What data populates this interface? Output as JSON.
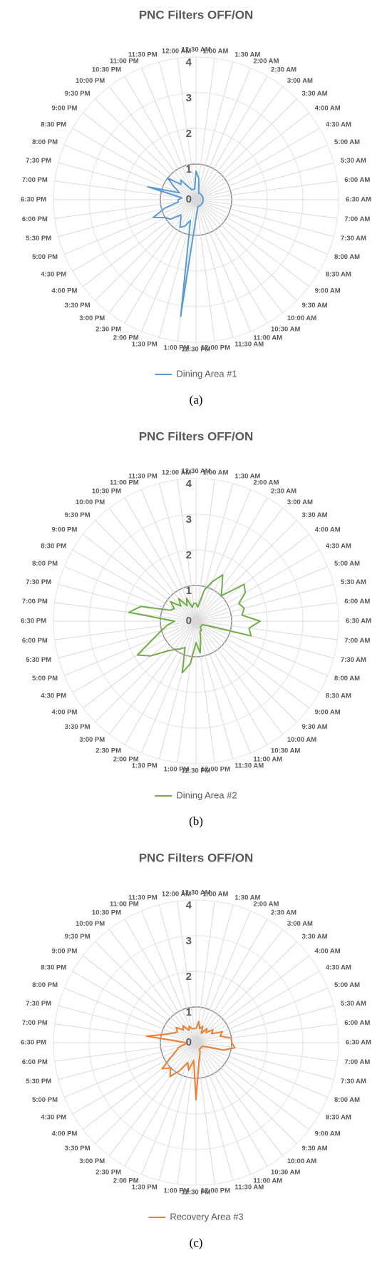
{
  "chart_data": [
    {
      "type": "radar",
      "title": "PNC Filters OFF/ON",
      "caption": "(a)",
      "categories": [
        "12:30 AM",
        "1:00 AM",
        "1:30 AM",
        "2:00 AM",
        "2:30 AM",
        "3:00 AM",
        "3:30 AM",
        "4:00 AM",
        "4:30 AM",
        "5:00 AM",
        "5:30 AM",
        "6:00 AM",
        "6:30 AM",
        "7:00 AM",
        "7:30 AM",
        "8:00 AM",
        "8:30 AM",
        "9:00 AM",
        "9:30 AM",
        "10:00 AM",
        "10:30 AM",
        "11:00 AM",
        "11:30 AM",
        "12:00 PM",
        "12:30 PM",
        "1:00 PM",
        "1:30 PM",
        "2:00 PM",
        "2:30 PM",
        "3:00 PM",
        "3:30 PM",
        "4:00 PM",
        "4:30 PM",
        "5:00 PM",
        "5:30 PM",
        "6:00 PM",
        "6:30 PM",
        "7:00 PM",
        "7:30 PM",
        "8:00 PM",
        "8:30 PM",
        "9:00 PM",
        "9:30 PM",
        "10:00 PM",
        "10:30 PM",
        "11:00 PM",
        "11:30 PM",
        "12:00 AM"
      ],
      "series": [
        {
          "name": "Dining Area #1",
          "color": "#5b9bd5",
          "values": [
            0.8,
            0.6,
            0.3,
            0.2,
            0.2,
            0.2,
            0.2,
            0.2,
            0.2,
            0.2,
            0.2,
            0.2,
            0.2,
            0.2,
            0.2,
            0.2,
            0.2,
            0.2,
            0.2,
            0.2,
            0.2,
            0.2,
            0.2,
            0.3,
            0.5,
            3.3,
            0.6,
            0.8,
            0.9,
            0.7,
            0.6,
            0.9,
            1.0,
            1.3,
            0.9,
            0.5,
            0.5,
            0.4,
            1.4,
            0.5,
            0.7,
            1.0,
            0.6,
            0.7,
            0.4,
            0.3,
            0.3,
            0.3
          ]
        }
      ],
      "ylim": [
        0,
        4
      ],
      "yticks": [
        0,
        1,
        2,
        3,
        4
      ],
      "reference_line": 1,
      "legend": "bottom"
    },
    {
      "type": "radar",
      "title": "PNC Filters OFF/ON",
      "caption": "(b)",
      "categories": [
        "12:30 AM",
        "1:00 AM",
        "1:30 AM",
        "2:00 AM",
        "2:30 AM",
        "3:00 AM",
        "3:30 AM",
        "4:00 AM",
        "4:30 AM",
        "5:00 AM",
        "5:30 AM",
        "6:00 AM",
        "6:30 AM",
        "7:00 AM",
        "7:30 AM",
        "8:00 AM",
        "8:30 AM",
        "9:00 AM",
        "9:30 AM",
        "10:00 AM",
        "10:30 AM",
        "11:00 AM",
        "11:30 AM",
        "12:00 PM",
        "12:30 PM",
        "1:00 PM",
        "1:30 PM",
        "2:00 PM",
        "2:30 PM",
        "3:00 PM",
        "3:30 PM",
        "4:00 PM",
        "4:30 PM",
        "5:00 PM",
        "5:30 PM",
        "6:00 PM",
        "6:30 PM",
        "7:00 PM",
        "7:30 PM",
        "8:00 PM",
        "8:30 PM",
        "9:00 PM",
        "9:30 PM",
        "10:00 PM",
        "10:30 PM",
        "11:00 PM",
        "11:30 PM",
        "12:00 AM"
      ],
      "series": [
        {
          "name": "Dining Area #2",
          "color": "#70ad47",
          "values": [
            0.5,
            0.4,
            0.9,
            1.2,
            1.5,
            1.2,
            1.0,
            1.7,
            1.6,
            1.3,
            1.4,
            1.3,
            1.8,
            1.5,
            1.6,
            0.3,
            0.2,
            0.2,
            0.2,
            0.2,
            0.3,
            0.3,
            0.5,
            0.9,
            0.6,
            1.2,
            1.5,
            0.8,
            0.9,
            1.0,
            1.2,
            1.6,
            1.9,
            1.3,
            1.0,
            0.8,
            0.6,
            1.9,
            1.6,
            0.8,
            0.7,
            0.9,
            0.6,
            0.8,
            0.5,
            0.7,
            0.4,
            0.5
          ]
        }
      ],
      "ylim": [
        0,
        4
      ],
      "yticks": [
        0,
        1,
        2,
        3,
        4
      ],
      "reference_line": 1,
      "legend": "bottom"
    },
    {
      "type": "radar",
      "title": "PNC Filters OFF/ON",
      "caption": "(c)",
      "categories": [
        "12:30 AM",
        "1:00 AM",
        "1:30 AM",
        "2:00 AM",
        "2:30 AM",
        "3:00 AM",
        "3:30 AM",
        "4:00 AM",
        "4:30 AM",
        "5:00 AM",
        "5:30 AM",
        "6:00 AM",
        "6:30 AM",
        "7:00 AM",
        "7:30 AM",
        "8:00 AM",
        "8:30 AM",
        "9:00 AM",
        "9:30 AM",
        "10:00 AM",
        "10:30 AM",
        "11:00 AM",
        "11:30 AM",
        "12:00 PM",
        "12:30 PM",
        "1:00 PM",
        "1:30 PM",
        "2:00 PM",
        "2:30 PM",
        "3:00 PM",
        "3:30 PM",
        "4:00 PM",
        "4:30 PM",
        "5:00 PM",
        "5:30 PM",
        "6:00 PM",
        "6:30 PM",
        "7:00 PM",
        "7:30 PM",
        "8:00 PM",
        "8:30 PM",
        "9:00 PM",
        "9:30 PM",
        "10:00 PM",
        "10:30 PM",
        "11:00 PM",
        "11:30 PM",
        "12:00 AM"
      ],
      "series": [
        {
          "name": "Recovery Area #3",
          "color": "#ed7d31",
          "values": [
            0.4,
            0.6,
            0.4,
            0.5,
            0.3,
            0.5,
            0.4,
            0.6,
            0.5,
            0.8,
            0.7,
            1.0,
            1.0,
            1.1,
            0.8,
            0.3,
            0.2,
            0.2,
            0.2,
            0.2,
            0.2,
            0.3,
            0.4,
            0.6,
            1.6,
            0.5,
            0.8,
            0.6,
            0.9,
            1.2,
            1.0,
            1.2,
            0.8,
            0.6,
            0.5,
            0.3,
            0.3,
            1.4,
            0.9,
            0.7,
            0.6,
            0.7,
            0.5,
            0.6,
            0.4,
            0.5,
            0.4,
            0.4
          ]
        }
      ],
      "ylim": [
        0,
        4
      ],
      "yticks": [
        0,
        1,
        2,
        3,
        4
      ],
      "reference_line": 1,
      "legend": "bottom"
    }
  ]
}
